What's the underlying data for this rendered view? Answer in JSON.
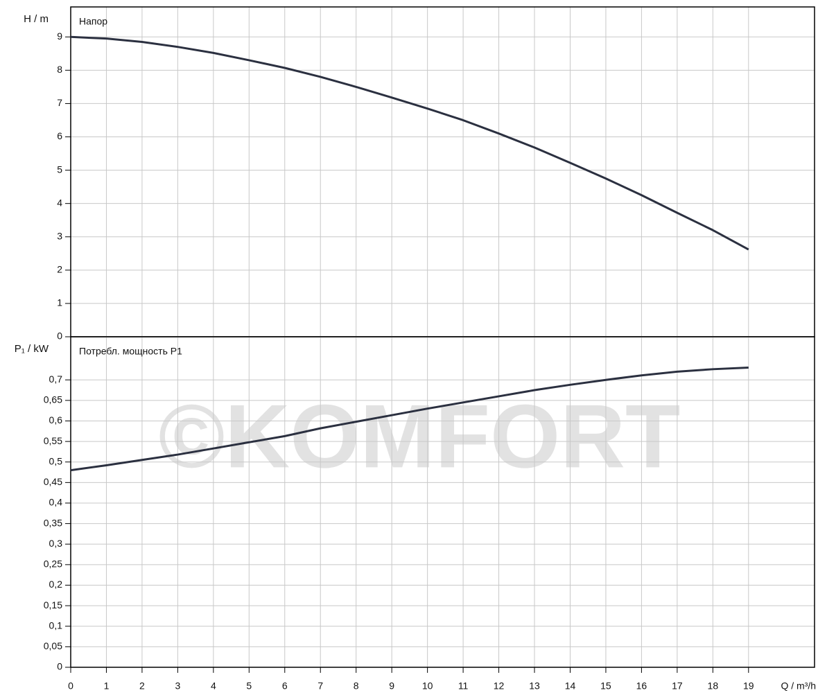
{
  "watermark": "©KOMFORT",
  "chart_data": [
    {
      "type": "line",
      "ylabel": "H / m",
      "annotation": "Напор",
      "x": [
        0,
        1,
        2,
        3,
        4,
        5,
        6,
        7,
        8,
        9,
        10,
        11,
        12,
        13,
        14,
        15,
        16,
        17,
        18,
        19
      ],
      "series": [
        {
          "color": "#2b3040",
          "values": [
            9,
            8.95,
            8.85,
            8.7,
            8.52,
            8.3,
            8.07,
            7.8,
            7.5,
            7.18,
            6.85,
            6.5,
            6.1,
            5.68,
            5.22,
            4.75,
            4.25,
            3.72,
            3.2,
            2.62
          ]
        }
      ],
      "xlim": [
        0,
        20.85
      ],
      "ylim": [
        0,
        9.9
      ],
      "yticks": [
        0,
        1,
        2,
        3,
        4,
        5,
        6,
        7,
        8,
        9
      ],
      "grid": true
    },
    {
      "type": "line",
      "ylabel": "P₁ / kW",
      "annotation": "Потребл. мощность P1",
      "xlabel": "Q / m³/h",
      "x": [
        0,
        1,
        2,
        3,
        4,
        5,
        6,
        7,
        8,
        9,
        10,
        11,
        12,
        13,
        14,
        15,
        16,
        17,
        18,
        19
      ],
      "series": [
        {
          "color": "#2b3040",
          "values": [
            0.48,
            0.492,
            0.505,
            0.518,
            0.533,
            0.548,
            0.563,
            0.582,
            0.598,
            0.614,
            0.63,
            0.645,
            0.66,
            0.675,
            0.688,
            0.7,
            0.711,
            0.72,
            0.726,
            0.73
          ]
        }
      ],
      "xlim": [
        0,
        20.85
      ],
      "ylim": [
        0,
        0.805
      ],
      "xticks": [
        0,
        1,
        2,
        3,
        4,
        5,
        6,
        7,
        8,
        9,
        10,
        11,
        12,
        13,
        14,
        15,
        16,
        17,
        18,
        19
      ],
      "yticks": [
        0,
        {
          "value": 0.05,
          "label": "0,05"
        },
        {
          "value": 0.1,
          "label": "0,1"
        },
        {
          "value": 0.15,
          "label": "0,15"
        },
        {
          "value": 0.2,
          "label": "0,2"
        },
        {
          "value": 0.25,
          "label": "0,25"
        },
        {
          "value": 0.3,
          "label": "0,3"
        },
        {
          "value": 0.35,
          "label": "0,35"
        },
        {
          "value": 0.4,
          "label": "0,4"
        },
        {
          "value": 0.45,
          "label": "0,45"
        },
        {
          "value": 0.5,
          "label": "0,5"
        },
        {
          "value": 0.55,
          "label": "0,55"
        },
        {
          "value": 0.6,
          "label": "0,6"
        },
        {
          "value": 0.65,
          "label": "0,65"
        },
        {
          "value": 0.7,
          "label": "0,7"
        }
      ],
      "grid": true
    }
  ]
}
